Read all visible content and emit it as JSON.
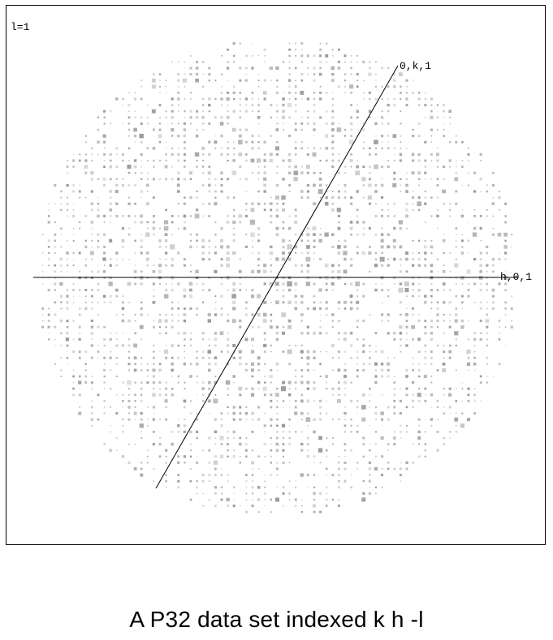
{
  "plot": {
    "layer_label": "l=1",
    "h_axis_label": "h,0,1",
    "k_axis_label": "0,k,1",
    "spot_color": "#808080"
  },
  "caption": "A P32 data set indexed k h -l"
}
